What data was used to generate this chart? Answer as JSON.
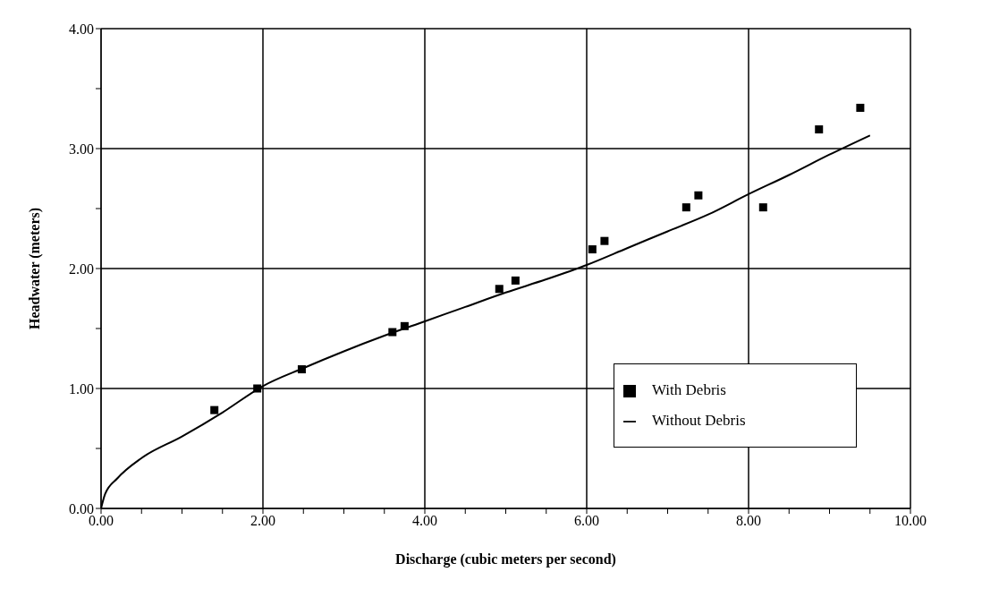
{
  "chart_data": {
    "type": "scatter",
    "xlabel": "Discharge  (cubic meters per second)",
    "ylabel": "Headwater  (meters)",
    "xlim": [
      0,
      10
    ],
    "ylim": [
      0,
      4
    ],
    "xticks": [
      {
        "value": 0,
        "label": "0.00"
      },
      {
        "value": 0.5,
        "label": null
      },
      {
        "value": 1,
        "label": null
      },
      {
        "value": 1.5,
        "label": null
      },
      {
        "value": 2,
        "label": "2.00"
      },
      {
        "value": 2.5,
        "label": null
      },
      {
        "value": 3,
        "label": null
      },
      {
        "value": 3.5,
        "label": null
      },
      {
        "value": 4,
        "label": "4.00"
      },
      {
        "value": 4.5,
        "label": null
      },
      {
        "value": 5,
        "label": null
      },
      {
        "value": 5.5,
        "label": null
      },
      {
        "value": 6,
        "label": "6.00"
      },
      {
        "value": 6.5,
        "label": null
      },
      {
        "value": 7,
        "label": null
      },
      {
        "value": 7.5,
        "label": null
      },
      {
        "value": 8,
        "label": "8.00"
      },
      {
        "value": 8.5,
        "label": null
      },
      {
        "value": 9,
        "label": null
      },
      {
        "value": 9.5,
        "label": null
      },
      {
        "value": 10,
        "label": "10.00"
      }
    ],
    "yticks": [
      {
        "value": 0,
        "label": "0.00"
      },
      {
        "value": 0.5,
        "label": null
      },
      {
        "value": 1,
        "label": "1.00"
      },
      {
        "value": 1.5,
        "label": null
      },
      {
        "value": 2,
        "label": "2.00"
      },
      {
        "value": 2.5,
        "label": null
      },
      {
        "value": 3,
        "label": "3.00"
      },
      {
        "value": 3.5,
        "label": null
      },
      {
        "value": 4,
        "label": "4.00"
      }
    ],
    "grid": true,
    "legend": "bottom right",
    "series": [
      {
        "name": "With Debris",
        "marker": "square",
        "color": "#000000",
        "x": [
          1.4,
          1.93,
          2.48,
          3.6,
          3.75,
          4.92,
          5.12,
          6.07,
          6.22,
          7.23,
          7.38,
          8.18,
          8.87,
          9.38
        ],
        "values": [
          0.82,
          1.0,
          1.16,
          1.47,
          1.52,
          1.83,
          1.9,
          2.16,
          2.23,
          2.51,
          2.61,
          2.51,
          3.16,
          3.34
        ]
      },
      {
        "name": "Without Debris",
        "type": "line",
        "marker": "none",
        "line_style": "solid",
        "color": "#000000",
        "x": [
          0,
          0.05,
          0.2,
          0.5,
          1,
          1.5,
          2,
          2.5,
          3,
          3.5,
          4,
          4.5,
          5,
          5.5,
          6,
          6.5,
          7,
          7.5,
          8,
          8.5,
          9,
          9.5
        ],
        "values": [
          0,
          0.12,
          0.25,
          0.42,
          0.6,
          0.8,
          1.02,
          1.17,
          1.31,
          1.44,
          1.56,
          1.68,
          1.8,
          1.91,
          2.03,
          2.17,
          2.31,
          2.45,
          2.62,
          2.78,
          2.95,
          3.11
        ]
      }
    ]
  }
}
